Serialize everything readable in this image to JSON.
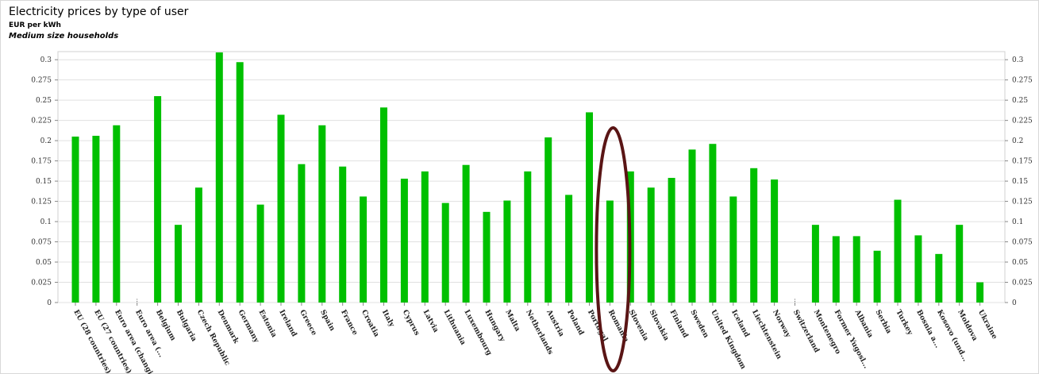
{
  "header": {
    "title": "Electricity prices by type of user",
    "unit": "EUR per kWh",
    "subtitle": "Medium size households"
  },
  "chart_data": {
    "type": "bar",
    "title": "Electricity prices by type of user",
    "subtitle": "Medium size households",
    "ylabel": "EUR per kWh",
    "xlabel": "",
    "ylim": [
      0,
      0.31
    ],
    "yticks": [
      0,
      0.025,
      0.05,
      0.075,
      0.1,
      0.125,
      0.15,
      0.175,
      0.2,
      0.225,
      0.25,
      0.275,
      0.3
    ],
    "ytick_labels": [
      "0",
      "0.025",
      "0.05",
      "0.075",
      "0.1",
      "0.125",
      "0.15",
      "0.175",
      "0.2",
      "0.225",
      "0.25",
      "0.275",
      "0.3"
    ],
    "grid": true,
    "legend": "none",
    "bar_color": "#00c000",
    "highlight_color": "#5a1515",
    "highlight_category": "Romania",
    "categories": [
      "EU (28 countries)",
      "EU (27 countries)",
      "Euro area (changi...",
      "Euro area (...",
      "Belgium",
      "Bulgaria",
      "Czech Republic",
      "Denmark",
      "Germany",
      "Estonia",
      "Ireland",
      "Greece",
      "Spain",
      "France",
      "Croatia",
      "Italy",
      "Cyprus",
      "Latvia",
      "Lithuania",
      "Luxembourg",
      "Hungary",
      "Malta",
      "Netherlands",
      "Austria",
      "Poland",
      "Portugal",
      "Romania",
      "Slovenia",
      "Slovakia",
      "Finland",
      "Sweden",
      "United Kingdom",
      "Iceland",
      "Liechtenstein",
      "Norway",
      "Switzerland",
      "Montenegro",
      "Former Yugosl...",
      "Albania",
      "Serbia",
      "Turkey",
      "Bosnia a...",
      "Kosovo (und...",
      "Moldova",
      "Ukraine"
    ],
    "values": [
      0.205,
      0.206,
      0.219,
      null,
      0.255,
      0.096,
      0.142,
      0.309,
      0.297,
      0.121,
      0.232,
      0.171,
      0.219,
      0.168,
      0.131,
      0.241,
      0.153,
      0.162,
      0.123,
      0.17,
      0.112,
      0.126,
      0.162,
      0.204,
      0.133,
      0.235,
      0.126,
      0.162,
      0.142,
      0.154,
      0.189,
      0.196,
      0.131,
      0.166,
      0.152,
      null,
      0.096,
      0.082,
      0.082,
      0.064,
      0.127,
      0.083,
      0.06,
      0.096,
      0.025
    ],
    "missing_marker": ":"
  }
}
